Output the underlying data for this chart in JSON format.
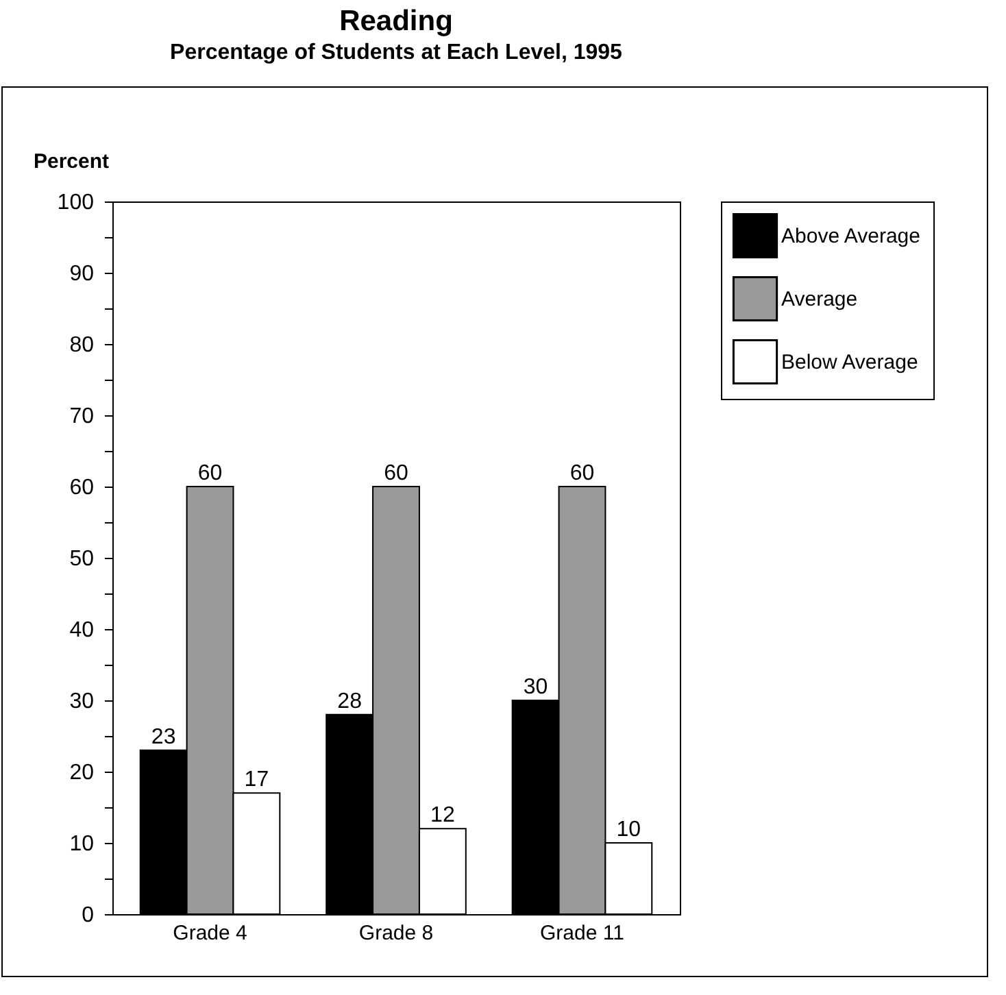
{
  "chart_data": {
    "type": "bar",
    "title": "Reading",
    "subtitle": "Percentage of Students at Each Level, 1995",
    "ylabel": "Percent",
    "categories": [
      "Grade 4",
      "Grade 8",
      "Grade 11"
    ],
    "series": [
      {
        "name": "Above Average",
        "color": "#000000",
        "values": [
          23,
          28,
          30
        ]
      },
      {
        "name": "Average",
        "color": "#999999",
        "values": [
          60,
          60,
          60
        ]
      },
      {
        "name": "Below Average",
        "color": "#ffffff",
        "values": [
          17,
          12,
          10
        ]
      }
    ],
    "ylim": [
      0,
      100
    ],
    "yticks": [
      0,
      {
        "value": 5,
        "label": null
      },
      10,
      {
        "value": 15,
        "label": null
      },
      20,
      {
        "value": 25,
        "label": null
      },
      30,
      {
        "value": 35,
        "label": null
      },
      40,
      {
        "value": 45,
        "label": null
      },
      50,
      {
        "value": 55,
        "label": null
      },
      60,
      {
        "value": 65,
        "label": null
      },
      70,
      {
        "value": 75,
        "label": null
      },
      80,
      {
        "value": 85,
        "label": null
      },
      90,
      {
        "value": 95,
        "label": null
      },
      100
    ],
    "data_labels": true,
    "grid": false,
    "legend": "top right"
  }
}
